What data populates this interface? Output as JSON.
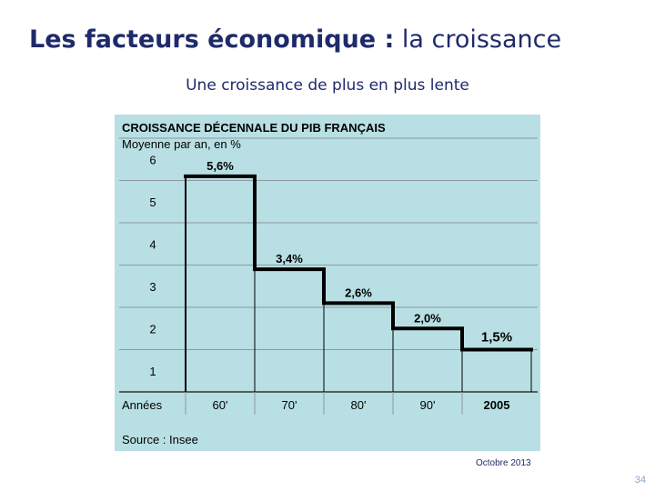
{
  "slide": {
    "title_bold": "Les facteurs économique :",
    "title_rest": " la croissance",
    "subtitle": "Une croissance de plus en plus lente",
    "footer_date": "Octobre 2013",
    "page_number": "34"
  },
  "colors": {
    "title": "#1f2a6b",
    "chart_background": "#b8dfe3",
    "step_line": "#000000",
    "grid": "#8a9aa0"
  },
  "chart_data": {
    "type": "line",
    "step": true,
    "title": "CROISSANCE DÉCENNALE DU PIB FRANÇAIS",
    "subtitle": "Moyenne par an, en %",
    "xlabel": "Années",
    "ylabel": "",
    "categories": [
      "60'",
      "70'",
      "80'",
      "90'",
      "2005"
    ],
    "values": [
      5.6,
      3.4,
      2.6,
      2.0,
      1.5
    ],
    "data_labels": [
      "5,6%",
      "3,4%",
      "2,6%",
      "2,0%",
      "1,5%"
    ],
    "y_ticks": [
      1,
      2,
      3,
      4,
      5,
      6
    ],
    "ylim": [
      0.5,
      6.5
    ],
    "grid": true,
    "source": "Source : Insee"
  }
}
